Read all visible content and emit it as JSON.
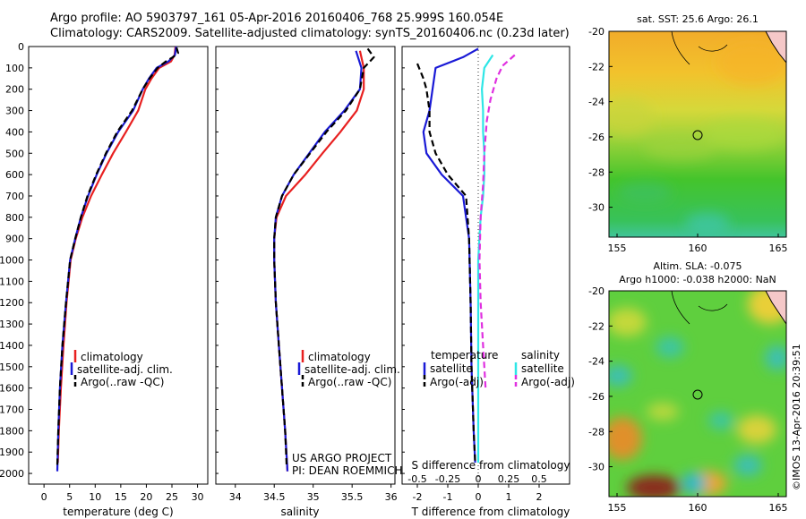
{
  "header": {
    "line1": "Argo profile: AO 5903797_161 05-Apr-2016 20160406_768 25.999S 160.054E",
    "line2": "Climatology: CARS2009. Satellite-adjusted climatology: synTS_20160406.nc (0.23d later)"
  },
  "colors": {
    "climatology": "#e82020",
    "satellite": "#1a1ad6",
    "argo": "#000000",
    "salinity_satellite": "#2ee6e6",
    "salinity_argo": "#e030e0"
  },
  "panel_temperature": {
    "xlabel": "temperature (deg C)",
    "legend": [
      "climatology",
      "satellite-adj. clim.",
      "Argo(..raw -QC)"
    ]
  },
  "panel_salinity": {
    "xlabel": "salinity",
    "legend": [
      "climatology",
      "satellite-adj. clim.",
      "Argo(..raw -QC)"
    ],
    "credit1": "US ARGO PROJECT",
    "credit2": "PI: DEAN ROEMMICH"
  },
  "panel_difference": {
    "top_xlabel": "S difference from climatology",
    "xlabel": "T difference from climatology",
    "legend_temperature_title": "temperature",
    "legend_salinity_title": "salinity",
    "legend_temperature": [
      "satellite",
      "Argo(-adj)"
    ],
    "legend_salinity": [
      "satellite",
      "Argo(-adj)"
    ]
  },
  "map_sst": {
    "title": "sat. SST: 25.6 Argo: 26.1",
    "xticks": [
      "155",
      "160",
      "165"
    ],
    "yticks": [
      "-20",
      "-22",
      "-24",
      "-26",
      "-28",
      "-30"
    ]
  },
  "map_sla": {
    "title1": "Altim. SLA: -0.075",
    "title2": "Argo h1000: -0.038 h2000: NaN",
    "xticks": [
      "155",
      "160",
      "165"
    ],
    "yticks": [
      "-20",
      "-22",
      "-24",
      "-26",
      "-28",
      "-30"
    ]
  },
  "stamp": "©IMOS 13-Apr-2016 20:39:51",
  "chart_data": [
    {
      "type": "line",
      "name": "temperature profile",
      "xlabel": "temperature (deg C)",
      "ylabel": "",
      "xlim": [
        -3,
        32
      ],
      "ylim": [
        2050,
        0
      ],
      "xticks": [
        0,
        5,
        10,
        15,
        20,
        25,
        30
      ],
      "yticks": [
        0,
        100,
        200,
        300,
        400,
        500,
        600,
        700,
        800,
        900,
        1000,
        1100,
        1200,
        1300,
        1400,
        1500,
        1600,
        1700,
        1800,
        1900,
        2000
      ],
      "legend": "bottom-center",
      "series": [
        {
          "name": "climatology",
          "color": "#e82020",
          "points": [
            [
              25.7,
              0
            ],
            [
              25.5,
              40
            ],
            [
              24.8,
              70
            ],
            [
              22.5,
              100
            ],
            [
              21,
              150
            ],
            [
              19.8,
              200
            ],
            [
              18.4,
              300
            ],
            [
              16,
              400
            ],
            [
              13.5,
              500
            ],
            [
              11.3,
              600
            ],
            [
              9.2,
              700
            ],
            [
              7.5,
              800
            ],
            [
              6.2,
              900
            ],
            [
              5.2,
              1000
            ],
            [
              4.4,
              1200
            ],
            [
              3.8,
              1400
            ],
            [
              3.3,
              1600
            ],
            [
              2.9,
              1800
            ],
            [
              2.7,
              1950
            ]
          ]
        },
        {
          "name": "satellite-adj. clim.",
          "color": "#1a1ad6",
          "points": [
            [
              25.8,
              0
            ],
            [
              25.6,
              40
            ],
            [
              24.3,
              70
            ],
            [
              22,
              100
            ],
            [
              20.5,
              150
            ],
            [
              19.3,
              200
            ],
            [
              17.4,
              300
            ],
            [
              14.5,
              400
            ],
            [
              12.2,
              500
            ],
            [
              10.3,
              600
            ],
            [
              8.6,
              700
            ],
            [
              7.2,
              800
            ],
            [
              6.1,
              900
            ],
            [
              5.1,
              1000
            ],
            [
              4.3,
              1200
            ],
            [
              3.6,
              1400
            ],
            [
              3.1,
              1600
            ],
            [
              2.8,
              1800
            ],
            [
              2.6,
              1990
            ]
          ]
        },
        {
          "name": "Argo(..raw -QC)",
          "color": "#000000",
          "dash": true,
          "points": [
            [
              25.9,
              5
            ],
            [
              26.2,
              30
            ],
            [
              25.2,
              50
            ],
            [
              23.8,
              70
            ],
            [
              22.2,
              100
            ],
            [
              20.6,
              150
            ],
            [
              19.3,
              200
            ],
            [
              17.2,
              300
            ],
            [
              14.3,
              400
            ],
            [
              12.1,
              500
            ],
            [
              10.2,
              600
            ],
            [
              8.5,
              700
            ],
            [
              7.2,
              800
            ],
            [
              6.1,
              900
            ],
            [
              5.1,
              1000
            ],
            [
              4.3,
              1200
            ],
            [
              3.6,
              1400
            ],
            [
              3.1,
              1600
            ],
            [
              2.8,
              1800
            ],
            [
              2.6,
              1960
            ]
          ]
        }
      ]
    },
    {
      "type": "line",
      "name": "salinity profile",
      "xlabel": "salinity",
      "ylabel": "",
      "xlim": [
        33.75,
        36.05
      ],
      "ylim": [
        2050,
        0
      ],
      "xticks": [
        34,
        34.5,
        35,
        35.5,
        36
      ],
      "legend": "bottom-center",
      "series": [
        {
          "name": "climatology",
          "color": "#e82020",
          "points": [
            [
              35.6,
              20
            ],
            [
              35.65,
              100
            ],
            [
              35.65,
              200
            ],
            [
              35.56,
              300
            ],
            [
              35.35,
              400
            ],
            [
              35.12,
              500
            ],
            [
              34.9,
              600
            ],
            [
              34.65,
              700
            ],
            [
              34.53,
              800
            ],
            [
              34.5,
              900
            ],
            [
              34.5,
              1000
            ],
            [
              34.52,
              1200
            ],
            [
              34.56,
              1400
            ],
            [
              34.6,
              1600
            ],
            [
              34.64,
              1800
            ],
            [
              34.67,
              1990
            ]
          ]
        },
        {
          "name": "satellite-adj. clim.",
          "color": "#1a1ad6",
          "points": [
            [
              35.55,
              20
            ],
            [
              35.62,
              100
            ],
            [
              35.6,
              200
            ],
            [
              35.4,
              300
            ],
            [
              35.15,
              400
            ],
            [
              34.95,
              500
            ],
            [
              34.75,
              600
            ],
            [
              34.6,
              700
            ],
            [
              34.52,
              800
            ],
            [
              34.5,
              900
            ],
            [
              34.5,
              1000
            ],
            [
              34.52,
              1200
            ],
            [
              34.56,
              1400
            ],
            [
              34.6,
              1600
            ],
            [
              34.64,
              1800
            ],
            [
              34.67,
              1990
            ]
          ]
        },
        {
          "name": "Argo(..raw -QC)",
          "color": "#000000",
          "dash": true,
          "points": [
            [
              35.7,
              10
            ],
            [
              35.78,
              50
            ],
            [
              35.65,
              100
            ],
            [
              35.6,
              200
            ],
            [
              35.42,
              300
            ],
            [
              35.17,
              400
            ],
            [
              34.96,
              500
            ],
            [
              34.75,
              600
            ],
            [
              34.6,
              700
            ],
            [
              34.52,
              800
            ],
            [
              34.5,
              900
            ],
            [
              34.5,
              1000
            ],
            [
              34.52,
              1200
            ],
            [
              34.56,
              1400
            ],
            [
              34.6,
              1600
            ],
            [
              34.64,
              1800
            ],
            [
              34.66,
              1970
            ]
          ]
        }
      ]
    },
    {
      "type": "line",
      "name": "difference from climatology",
      "xlabel": "T difference from climatology",
      "x2label": "S difference from climatology",
      "xlim": [
        -2.5,
        3
      ],
      "x2lim": [
        -0.625,
        0.75
      ],
      "ylim": [
        2050,
        0
      ],
      "xticks": [
        -2,
        -1,
        0,
        1,
        2
      ],
      "x2ticks": [
        -0.5,
        -0.25,
        0,
        0.25,
        0.5
      ],
      "x2ticklabels": [
        "-0.5",
        "-0.25",
        "0",
        "0.25",
        "0.5"
      ],
      "legend": "bottom-center",
      "series": [
        {
          "name": "temperature satellite",
          "color": "#1a1ad6",
          "axis": "T",
          "points": [
            [
              0,
              10
            ],
            [
              -0.5,
              50
            ],
            [
              -1.4,
              100
            ],
            [
              -1.5,
              200
            ],
            [
              -1.6,
              300
            ],
            [
              -1.8,
              400
            ],
            [
              -1.7,
              500
            ],
            [
              -1.2,
              600
            ],
            [
              -0.5,
              700
            ],
            [
              -0.3,
              900
            ],
            [
              -0.25,
              1200
            ],
            [
              -0.22,
              1500
            ],
            [
              -0.15,
              1800
            ],
            [
              -0.1,
              1950
            ]
          ]
        },
        {
          "name": "temperature Argo(-adj)",
          "color": "#000000",
          "dash": true,
          "axis": "T",
          "points": [
            [
              -2,
              80
            ],
            [
              -1.8,
              150
            ],
            [
              -1.7,
              200
            ],
            [
              -1.6,
              300
            ],
            [
              -1.6,
              400
            ],
            [
              -1.4,
              500
            ],
            [
              -1,
              600
            ],
            [
              -0.4,
              700
            ],
            [
              -0.3,
              900
            ],
            [
              -0.25,
              1200
            ],
            [
              -0.22,
              1500
            ],
            [
              -0.15,
              1800
            ],
            [
              -0.1,
              1950
            ]
          ]
        },
        {
          "name": "salinity satellite",
          "color": "#2ee6e6",
          "axis": "S",
          "points": [
            [
              0.12,
              40
            ],
            [
              0.05,
              100
            ],
            [
              0.03,
              200
            ],
            [
              0.04,
              300
            ],
            [
              0.04,
              400
            ],
            [
              0.05,
              500
            ],
            [
              0.05,
              600
            ],
            [
              0.04,
              700
            ],
            [
              0.02,
              800
            ],
            [
              0,
              1000
            ],
            [
              0,
              1400
            ],
            [
              0,
              1650
            ],
            [
              0,
              1950
            ]
          ]
        },
        {
          "name": "salinity Argo(-adj)",
          "color": "#e030e0",
          "dash": true,
          "axis": "S",
          "points": [
            [
              0.3,
              40
            ],
            [
              0.2,
              90
            ],
            [
              0.15,
              150
            ],
            [
              0.1,
              250
            ],
            [
              0.07,
              350
            ],
            [
              0.05,
              500
            ],
            [
              0.04,
              650
            ],
            [
              0.02,
              800
            ],
            [
              0.01,
              1000
            ],
            [
              0.02,
              1200
            ],
            [
              0.04,
              1400
            ],
            [
              0.05,
              1500
            ],
            [
              0.06,
              1600
            ]
          ]
        }
      ]
    },
    {
      "type": "heatmap",
      "name": "sat. SST map",
      "title": "sat. SST: 25.6 Argo: 26.1",
      "xlim": [
        154.5,
        165.5
      ],
      "ylim": [
        -31.7,
        -20
      ],
      "xticks": [
        155,
        160,
        165
      ],
      "yticks": [
        -20,
        -22,
        -24,
        -26,
        -28,
        -30
      ],
      "argo_position": [
        160.054,
        -25.999
      ]
    },
    {
      "type": "heatmap",
      "name": "altimetry SLA map",
      "title": "Altim. SLA: -0.075",
      "subtitle": "Argo h1000: -0.038 h2000: NaN",
      "xlim": [
        154.5,
        165.5
      ],
      "ylim": [
        -31.7,
        -20
      ],
      "xticks": [
        155,
        160,
        165
      ],
      "yticks": [
        -20,
        -22,
        -24,
        -26,
        -28,
        -30
      ],
      "argo_position": [
        160.054,
        -25.999
      ]
    }
  ]
}
